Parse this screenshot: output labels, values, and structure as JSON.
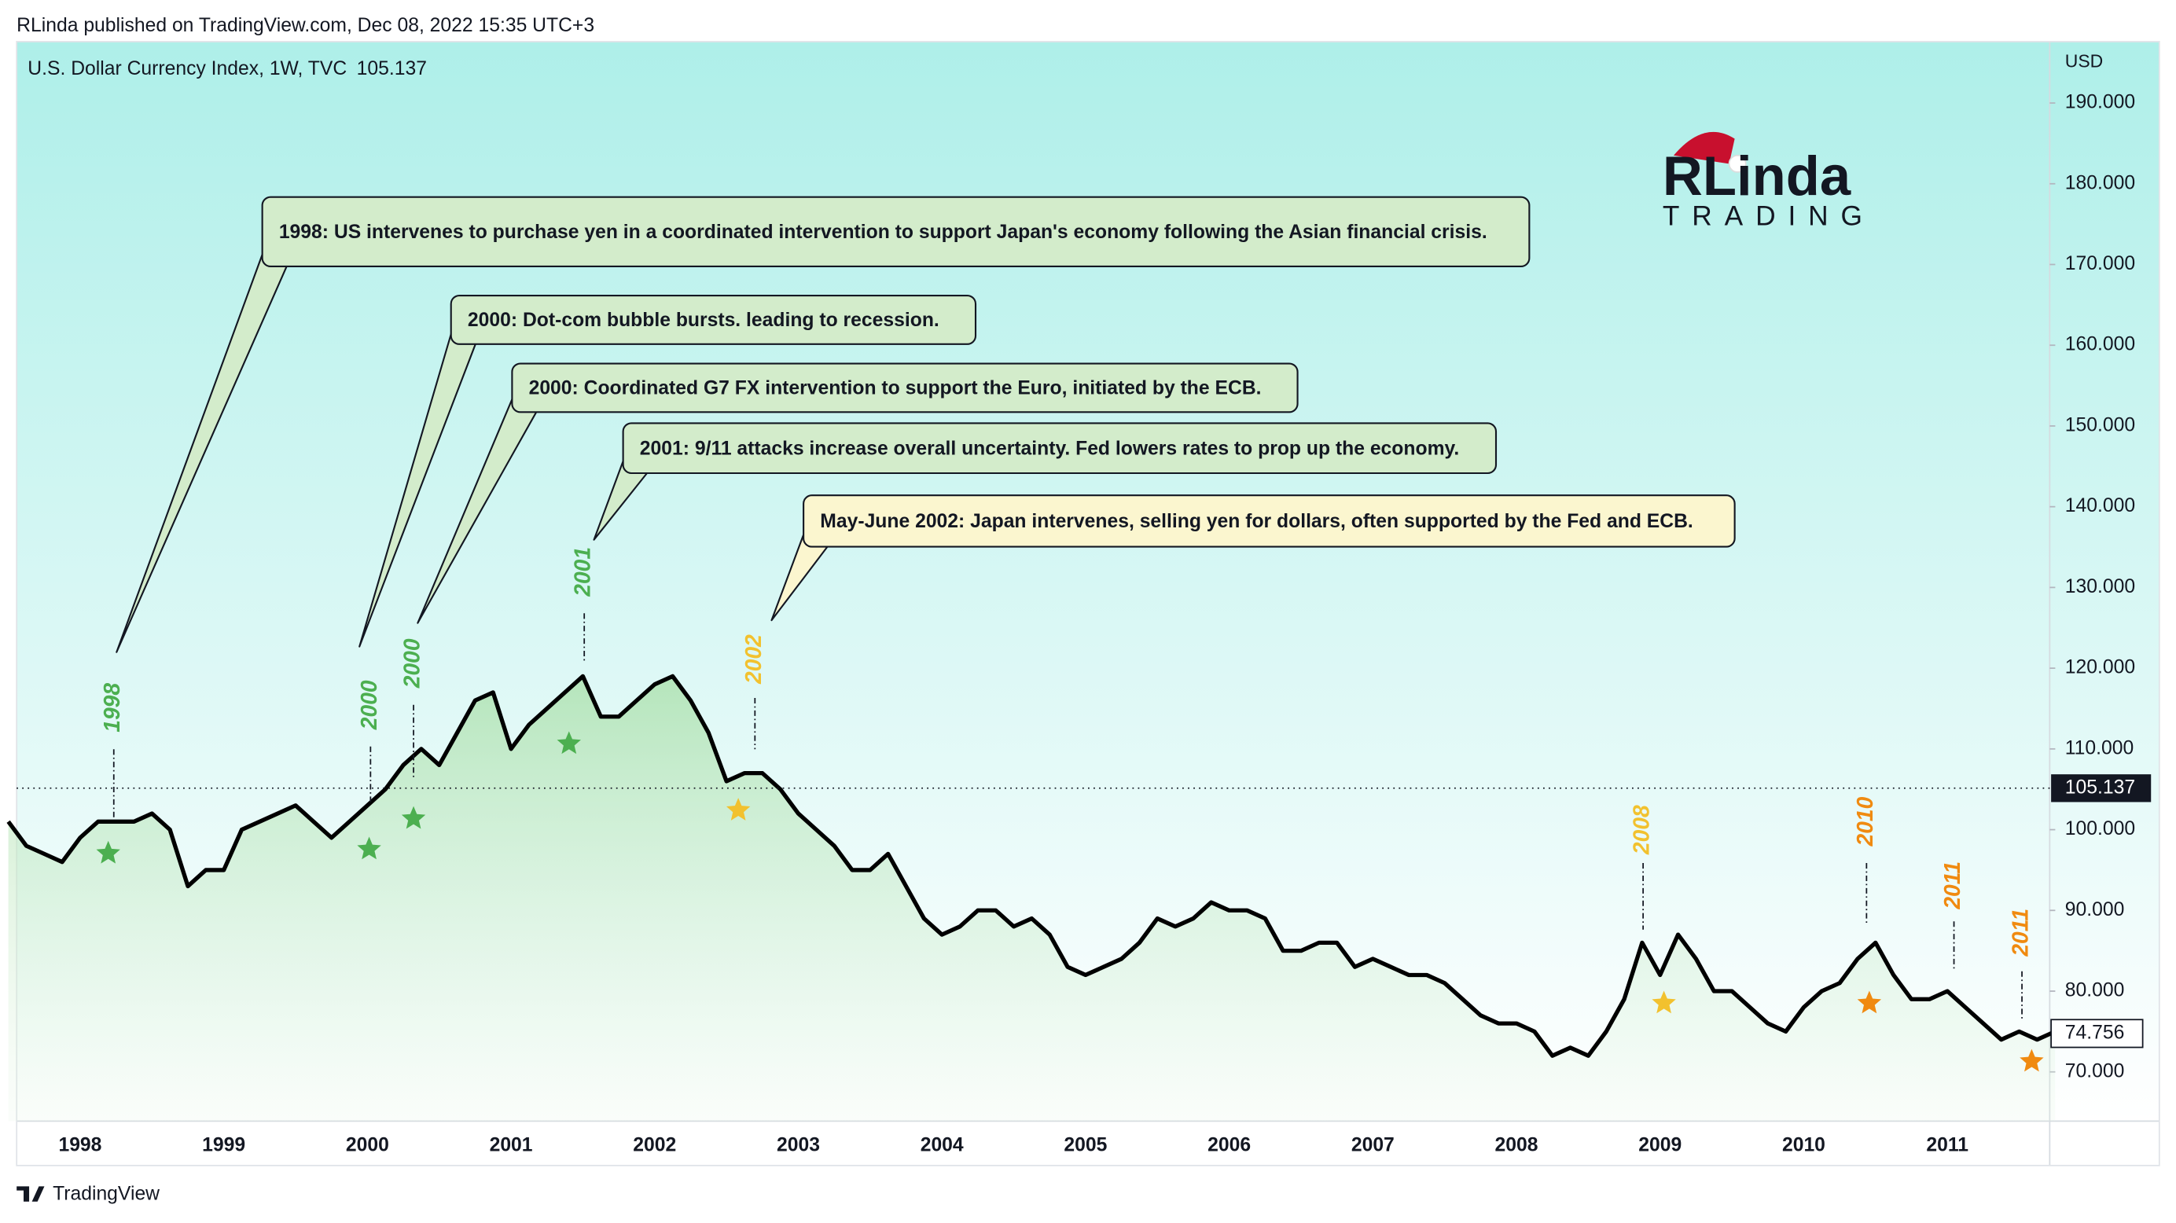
{
  "header": "RLinda published on TradingView.com, Dec 08, 2022 15:35 UTC+3",
  "footer": "TradingView",
  "logo": {
    "name": "RLinda",
    "tagline": "TRADING"
  },
  "chart_data": {
    "type": "line",
    "title": "U.S. Dollar Currency Index, 1W, TVC",
    "axis_unit": "USD",
    "color": "#000000",
    "categories": [
      null,
      null,
      null,
      null,
      "1998",
      null,
      null,
      null,
      null,
      null,
      null,
      null,
      "1999",
      null,
      null,
      null,
      null,
      null,
      null,
      null,
      "2000",
      null,
      null,
      null,
      null,
      null,
      null,
      null,
      "2001",
      null,
      null,
      null,
      null,
      null,
      null,
      null,
      "2002",
      null,
      null,
      null,
      null,
      null,
      null,
      null,
      "2003",
      null,
      null,
      null,
      null,
      null,
      null,
      null,
      "2004",
      null,
      null,
      null,
      null,
      null,
      null,
      null,
      "2005",
      null,
      null,
      null,
      null,
      null,
      null,
      null,
      "2006",
      null,
      null,
      null,
      null,
      null,
      null,
      null,
      "2007",
      null,
      null,
      null,
      null,
      null,
      null,
      null,
      "2008",
      null,
      null,
      null,
      null,
      null,
      null,
      null,
      "2009",
      null,
      null,
      null,
      null,
      null,
      null,
      null,
      "2010",
      null,
      null,
      null,
      null,
      null,
      null,
      null,
      "2011",
      null,
      null,
      null,
      null,
      null,
      null
    ],
    "values": [
      101,
      98,
      97,
      96,
      99,
      101,
      101,
      101,
      102,
      100,
      93,
      95,
      95,
      100,
      101,
      102,
      103,
      101,
      99,
      101,
      103,
      105,
      108,
      110,
      108,
      112,
      116,
      117,
      110,
      113,
      115,
      117,
      119,
      114,
      114,
      116,
      118,
      119,
      116,
      112,
      106,
      107,
      107,
      105,
      102,
      100,
      98,
      95,
      95,
      97,
      93,
      89,
      87,
      88,
      90,
      90,
      88,
      89,
      87,
      83,
      82,
      83,
      84,
      86,
      89,
      88,
      89,
      91,
      90,
      90,
      89,
      85,
      85,
      86,
      86,
      83,
      84,
      83,
      82,
      82,
      81,
      79,
      77,
      76,
      76,
      75,
      72,
      73,
      72,
      75,
      79,
      86,
      82,
      87,
      84,
      80,
      80,
      78,
      76,
      75,
      78,
      80,
      81,
      84,
      86,
      82,
      79,
      79,
      80,
      78,
      76,
      74,
      75,
      74,
      75
    ],
    "ylim": [
      63.9,
      197.6
    ],
    "yticks": [
      {
        "value": 70,
        "label": "70.000"
      },
      {
        "value": 80,
        "label": "80.000"
      },
      {
        "value": 90,
        "label": "90.000"
      },
      {
        "value": 100,
        "label": "100.000"
      },
      {
        "value": 110,
        "label": "110.000"
      },
      {
        "value": 120,
        "label": "120.000"
      },
      {
        "value": 130,
        "label": "130.000"
      },
      {
        "value": 140,
        "label": "140.000"
      },
      {
        "value": 150,
        "label": "150.000"
      },
      {
        "value": 160,
        "label": "160.000"
      },
      {
        "value": 170,
        "label": "170.000"
      },
      {
        "value": 180,
        "label": "180.000"
      },
      {
        "value": 190,
        "label": "190.000"
      }
    ],
    "price_line": {
      "value": 105.137,
      "label": "105.137"
    },
    "last_value": {
      "value": 74.756,
      "label": "74.756"
    },
    "annotations": [
      {
        "text": "1998",
        "color": "#4caf50"
      },
      {
        "text": "2000",
        "color": "#4caf50"
      },
      {
        "text": "2000",
        "color": "#4caf50"
      },
      {
        "text": "2001",
        "color": "#4caf50"
      },
      {
        "text": "2002",
        "color": "#f2c12e"
      },
      {
        "text": "2008",
        "color": "#f2c12e"
      },
      {
        "text": "2010",
        "color": "#f08a10"
      },
      {
        "text": "2011",
        "color": "#f08a10"
      },
      {
        "text": "2011",
        "color": "#f08a10"
      }
    ],
    "callouts": [
      {
        "text": "1998: US intervenes to purchase yen in a coordinated intervention to support Japan's economy following the Asian financial crisis.",
        "color": "#d3eccb"
      },
      {
        "text": "2000: Dot-com bubble bursts. leading to recession.",
        "color": "#d3eccb"
      },
      {
        "text": "2000: Coordinated G7 FX intervention to support the Euro, initiated by the ECB.",
        "color": "#d3eccb"
      },
      {
        "text": "2001: 9/11 attacks increase overall uncertainty. Fed lowers rates to prop up the economy.",
        "color": "#d3eccb"
      },
      {
        "text": "May-June 2002: Japan intervenes, selling yen for dollars, often supported by the Fed and ECB.",
        "color": "#fbf6cf"
      }
    ]
  }
}
